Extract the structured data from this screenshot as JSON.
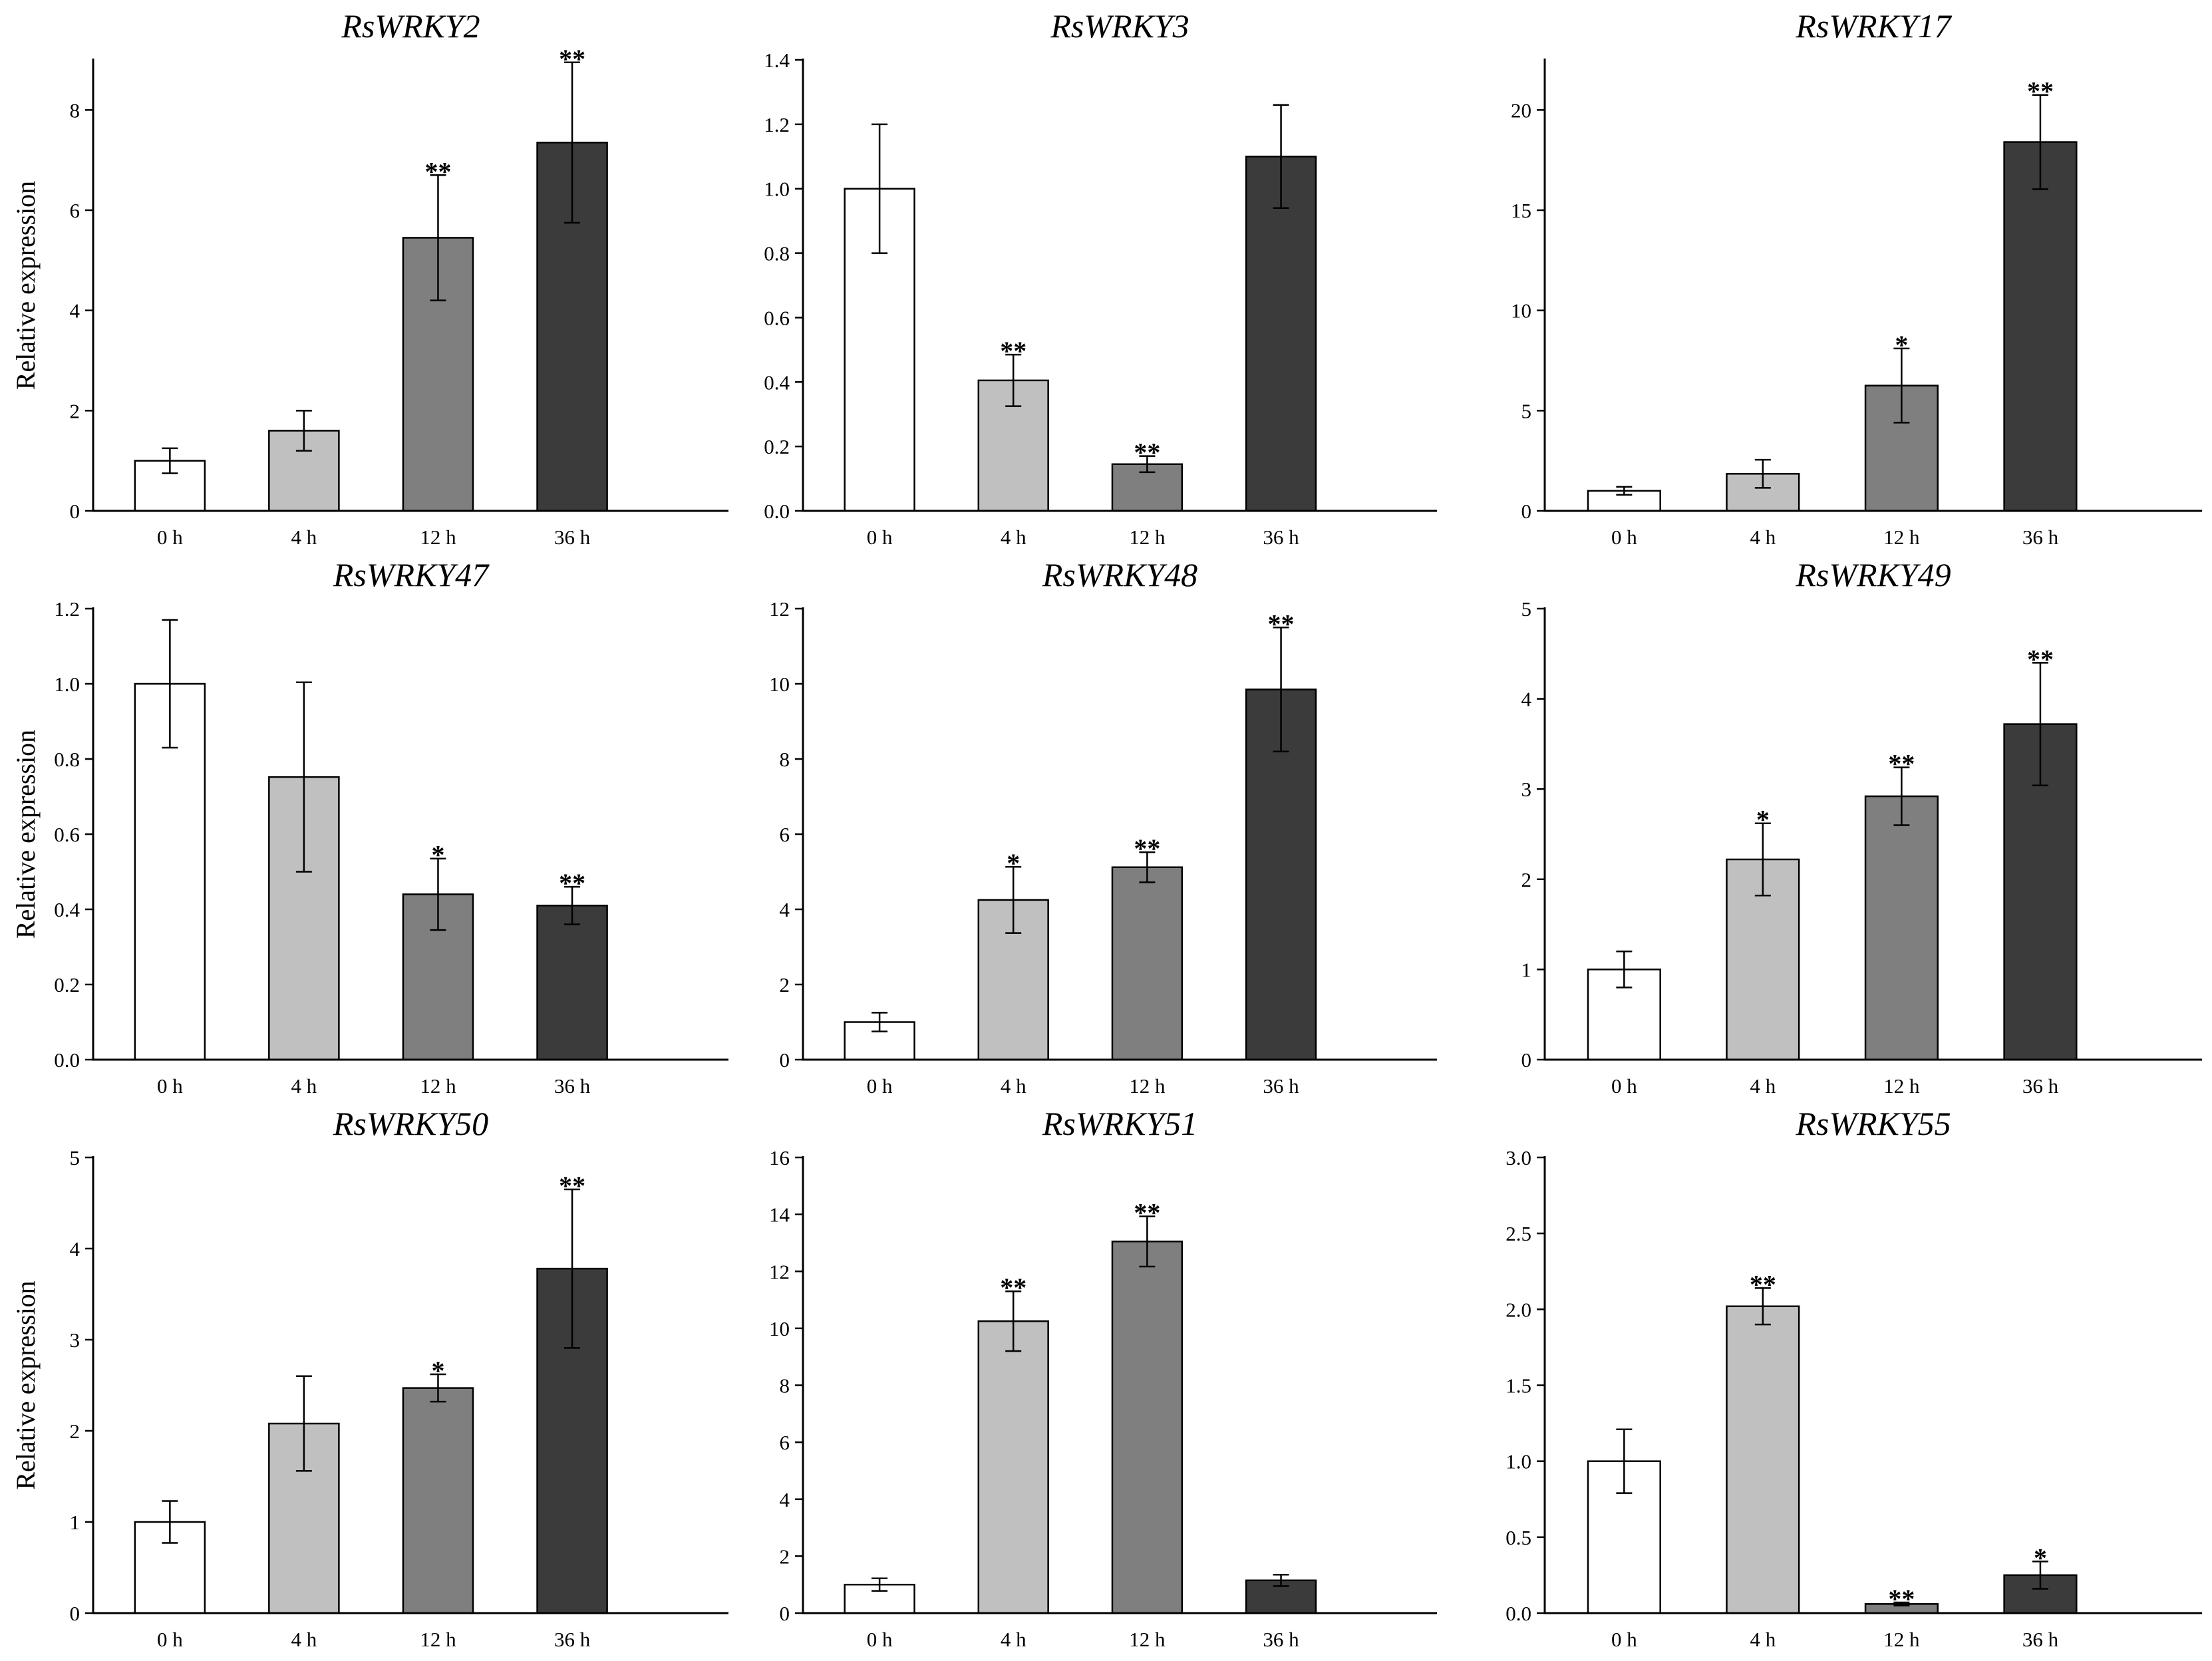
{
  "chart_data": [
    {
      "type": "bar",
      "title": "RsWRKY2",
      "xlabel": "",
      "ylabel": "Relative expression",
      "categories": [
        "0  h",
        "4  h",
        "12  h",
        "36  h"
      ],
      "values": [
        1.0,
        1.6,
        5.45,
        7.35
      ],
      "errors": [
        0.25,
        0.4,
        1.25,
        1.6
      ],
      "significance": [
        "",
        "",
        "**",
        "**"
      ],
      "ylim": [
        0,
        9
      ],
      "yticks": [
        0,
        2,
        4,
        6,
        8
      ],
      "ytick_labels": [
        "0",
        "2",
        "4",
        "6",
        "8"
      ]
    },
    {
      "type": "bar",
      "title": "RsWRKY3",
      "xlabel": "",
      "ylabel": "",
      "categories": [
        "0  h",
        "4  h",
        "12  h",
        "36  h"
      ],
      "values": [
        1.0,
        0.405,
        0.145,
        1.1
      ],
      "errors": [
        0.2,
        0.08,
        0.025,
        0.16
      ],
      "significance": [
        "",
        "**",
        "**",
        ""
      ],
      "ylim": [
        0,
        1.4
      ],
      "yticks": [
        0,
        0.2,
        0.4,
        0.6,
        0.8,
        1.0,
        1.2,
        1.4
      ],
      "ytick_labels": [
        "0.0",
        "0.2",
        "0.4",
        "0.6",
        "0.8",
        "1.0",
        "1.2",
        "1.4"
      ]
    },
    {
      "type": "bar",
      "title": "RsWRKY17",
      "xlabel": "",
      "ylabel": "",
      "categories": [
        "0  h",
        "4  h",
        "12  h",
        "36  h"
      ],
      "values": [
        1.0,
        1.85,
        6.25,
        18.4
      ],
      "errors": [
        0.2,
        0.7,
        1.85,
        2.35
      ],
      "significance": [
        "",
        "",
        "*",
        "**"
      ],
      "ylim": [
        0,
        22.5
      ],
      "yticks": [
        0,
        5,
        10,
        15,
        20
      ],
      "ytick_labels": [
        "0",
        "5",
        "10",
        "15",
        "20"
      ]
    },
    {
      "type": "bar",
      "title": "RsWRKY47",
      "xlabel": "",
      "ylabel": "Relative expression",
      "categories": [
        "0  h",
        "4  h",
        "12  h",
        "36  h"
      ],
      "values": [
        1.0,
        0.752,
        0.44,
        0.41
      ],
      "errors": [
        0.17,
        0.252,
        0.095,
        0.05
      ],
      "significance": [
        "",
        "",
        "*",
        "**"
      ],
      "ylim": [
        0,
        1.2
      ],
      "yticks": [
        0,
        0.2,
        0.4,
        0.6,
        0.8,
        1.0,
        1.2
      ],
      "ytick_labels": [
        "0.0",
        "0.2",
        "0.4",
        "0.6",
        "0.8",
        "1.0",
        "1.2"
      ]
    },
    {
      "type": "bar",
      "title": "RsWRKY48",
      "xlabel": "",
      "ylabel": "",
      "categories": [
        "0  h",
        "4  h",
        "12  h",
        "36  h"
      ],
      "values": [
        1.0,
        4.25,
        5.12,
        9.85
      ],
      "errors": [
        0.25,
        0.88,
        0.4,
        1.65
      ],
      "significance": [
        "",
        "*",
        "**",
        "**"
      ],
      "ylim": [
        0,
        12
      ],
      "yticks": [
        0,
        2,
        4,
        6,
        8,
        10,
        12
      ],
      "ytick_labels": [
        "0",
        "2",
        "4",
        "6",
        "8",
        "10",
        "12"
      ]
    },
    {
      "type": "bar",
      "title": "RsWRKY49",
      "xlabel": "",
      "ylabel": "",
      "categories": [
        "0  h",
        "4  h",
        "12  h",
        "36  h"
      ],
      "values": [
        1.0,
        2.22,
        2.92,
        3.72
      ],
      "errors": [
        0.2,
        0.4,
        0.32,
        0.68
      ],
      "significance": [
        "",
        "*",
        "**",
        "**"
      ],
      "ylim": [
        0,
        5
      ],
      "yticks": [
        0,
        1,
        2,
        3,
        4,
        5
      ],
      "ytick_labels": [
        "0",
        "1",
        "2",
        "3",
        "4",
        "5"
      ]
    },
    {
      "type": "bar",
      "title": "RsWRKY50",
      "xlabel": "",
      "ylabel": "Relative expression",
      "categories": [
        "0  h",
        "4  h",
        "12  h",
        "36  h"
      ],
      "values": [
        1.0,
        2.08,
        2.47,
        3.78
      ],
      "errors": [
        0.23,
        0.52,
        0.15,
        0.87
      ],
      "significance": [
        "",
        "",
        "*",
        "**"
      ],
      "ylim": [
        0,
        5
      ],
      "yticks": [
        0,
        1,
        2,
        3,
        4,
        5
      ],
      "ytick_labels": [
        "0",
        "1",
        "2",
        "3",
        "4",
        "5"
      ]
    },
    {
      "type": "bar",
      "title": "RsWRKY51",
      "xlabel": "",
      "ylabel": "",
      "categories": [
        "0  h",
        "4  h",
        "12  h",
        "36  h"
      ],
      "values": [
        1.0,
        10.25,
        13.05,
        1.15
      ],
      "errors": [
        0.22,
        1.05,
        0.88,
        0.2
      ],
      "significance": [
        "",
        "**",
        "**",
        ""
      ],
      "ylim": [
        0,
        16
      ],
      "yticks": [
        0,
        2,
        4,
        6,
        8,
        10,
        12,
        14,
        16
      ],
      "ytick_labels": [
        "0",
        "2",
        "4",
        "6",
        "8",
        "10",
        "12",
        "14",
        "16"
      ]
    },
    {
      "type": "bar",
      "title": "RsWRKY55",
      "xlabel": "",
      "ylabel": "",
      "categories": [
        "0  h",
        "4  h",
        "12  h",
        "36  h"
      ],
      "values": [
        1.0,
        2.02,
        0.06,
        0.25
      ],
      "errors": [
        0.21,
        0.12,
        0.01,
        0.09
      ],
      "significance": [
        "",
        "**",
        "**",
        "*"
      ],
      "ylim": [
        0,
        3.0
      ],
      "yticks": [
        0,
        0.5,
        1.0,
        1.5,
        2.0,
        2.5,
        3.0
      ],
      "ytick_labels": [
        "0.0",
        "0.5",
        "1.0",
        "1.5",
        "2.0",
        "2.5",
        "3.0"
      ]
    }
  ],
  "colors": {
    "bar_fills": [
      "#ffffff",
      "#c0c0c0",
      "#7f7f7f",
      "#3b3b3b"
    ],
    "stroke": "#000000",
    "background": "#ffffff"
  }
}
